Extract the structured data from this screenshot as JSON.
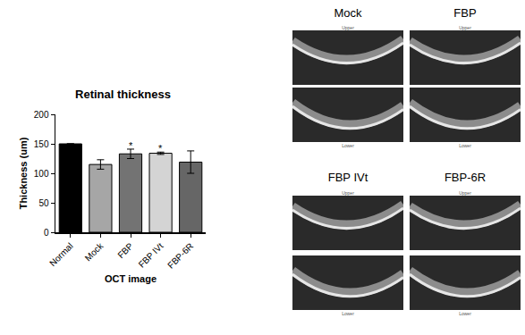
{
  "chart_data": {
    "type": "bar",
    "title": "Retinal thickness",
    "x_label": "OCT image",
    "y_label": "Thickness (um)",
    "categories": [
      "Normal",
      "Mock",
      "FBP",
      "FBP IVt",
      "FBP-6R"
    ],
    "values": [
      150,
      115,
      133,
      134,
      119
    ],
    "errors": [
      0,
      8,
      8,
      2,
      19
    ],
    "colors": [
      "#000000",
      "#a6a6a6",
      "#737373",
      "#d4d4d4",
      "#666666"
    ],
    "ylim": [
      0,
      200
    ],
    "yticks": [
      0,
      50,
      100,
      150,
      200
    ],
    "grid": false,
    "annotations": [
      {
        "category": "FBP",
        "text": "*"
      },
      {
        "category": "FBP IVt",
        "text": "*"
      }
    ]
  },
  "oct_panels": {
    "labels": [
      "Mock",
      "FBP",
      "FBP IVt",
      "FBP-6R"
    ],
    "upper_label": "Upper",
    "lower_label": "Lower"
  }
}
